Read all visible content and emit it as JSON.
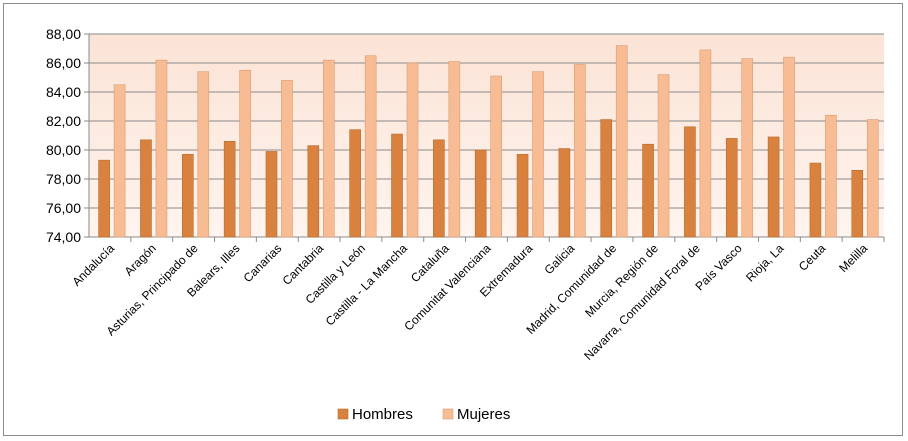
{
  "chart_data": {
    "type": "bar",
    "title": "",
    "xlabel": "",
    "ylabel": "",
    "ylim": [
      74,
      88
    ],
    "yticks": [
      "74,00",
      "76,00",
      "78,00",
      "80,00",
      "82,00",
      "84,00",
      "86,00",
      "88,00"
    ],
    "grid": true,
    "legend_position": "bottom",
    "categories": [
      "Andalucía",
      "Aragón",
      "Asturias, Principado de",
      "Balears, Illes",
      "Canarias",
      "Cantabria",
      "Castilla y León",
      "Castilla - La Mancha",
      "Cataluña",
      "Comunitat Valenciana",
      "Extremadura",
      "Galicia",
      "Madrid, Comunidad de",
      "Murcia, Región de",
      "Navarra, Comunidad Foral de",
      "País Vasco",
      "Rioja, La",
      "Ceuta",
      "Melilla"
    ],
    "series": [
      {
        "name": "Hombres",
        "color": "#d9823f",
        "values": [
          79.3,
          80.7,
          79.7,
          80.6,
          79.9,
          80.3,
          81.4,
          81.1,
          80.7,
          80.0,
          79.7,
          80.1,
          82.1,
          80.4,
          81.6,
          80.8,
          80.9,
          79.1,
          78.6
        ]
      },
      {
        "name": "Mujeres",
        "color": "#f8bc94",
        "values": [
          84.5,
          86.2,
          85.4,
          85.5,
          84.8,
          86.2,
          86.5,
          86.0,
          86.1,
          85.1,
          85.4,
          85.9,
          87.2,
          85.2,
          86.9,
          86.3,
          86.4,
          82.4,
          82.1
        ]
      }
    ]
  }
}
